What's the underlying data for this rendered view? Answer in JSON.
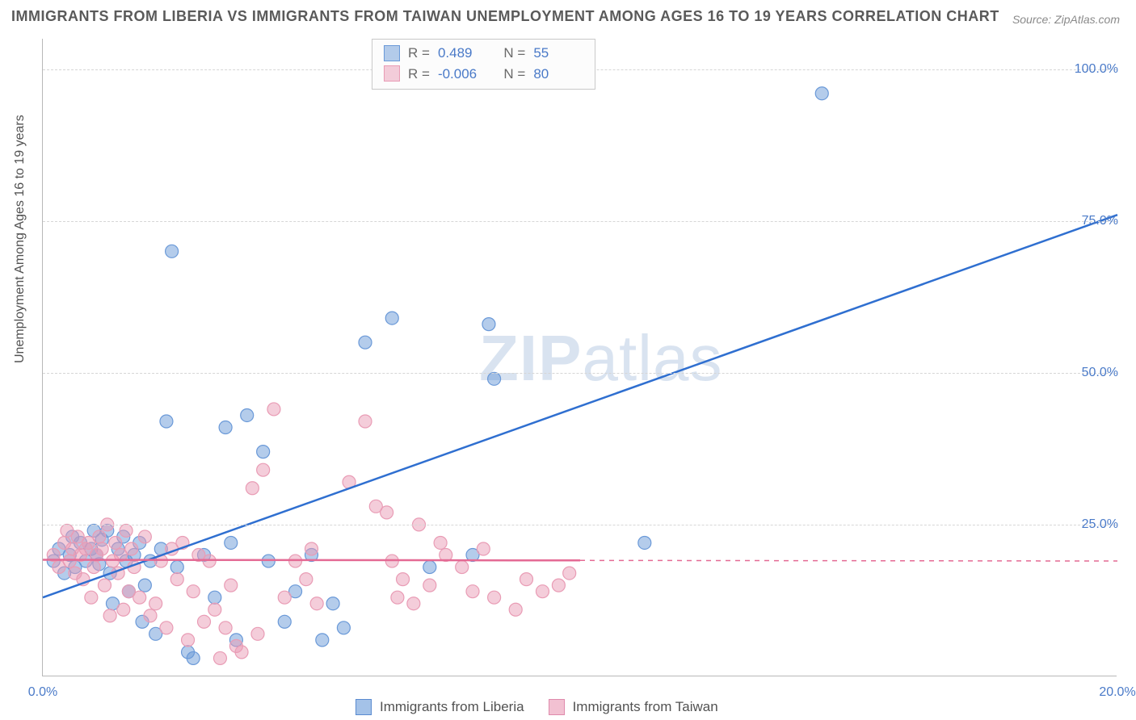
{
  "title": "IMMIGRANTS FROM LIBERIA VS IMMIGRANTS FROM TAIWAN UNEMPLOYMENT AMONG AGES 16 TO 19 YEARS CORRELATION CHART",
  "source": "Source: ZipAtlas.com",
  "watermark_bold": "ZIP",
  "watermark_rest": "atlas",
  "y_axis_title": "Unemployment Among Ages 16 to 19 years",
  "chart": {
    "type": "scatter",
    "background_color": "#ffffff",
    "grid_color": "#d6d6d6",
    "axis_color": "#b8b8b8",
    "tick_label_color": "#4a7ac8",
    "tick_fontsize": 16,
    "title_fontsize": 18,
    "title_color": "#5a5a5a",
    "xlim": [
      0,
      20
    ],
    "ylim": [
      0,
      105
    ],
    "x_ticks": [
      {
        "v": 0,
        "label": "0.0%"
      },
      {
        "v": 20,
        "label": "20.0%"
      }
    ],
    "y_ticks": [
      {
        "v": 25,
        "label": "25.0%"
      },
      {
        "v": 50,
        "label": "50.0%"
      },
      {
        "v": 75,
        "label": "75.0%"
      },
      {
        "v": 100,
        "label": "100.0%"
      }
    ],
    "marker_radius": 8,
    "marker_opacity": 0.55,
    "line_width": 2.5,
    "series": [
      {
        "name": "Immigrants from Liberia",
        "color": "#6a99d8",
        "line_color": "#2f6fd0",
        "fill": "rgba(106,153,216,0.5)",
        "R": "0.489",
        "N": "55",
        "trend": {
          "x1": 0,
          "y1": 13,
          "x2": 20,
          "y2": 76,
          "solid_until_x": 20
        },
        "points": [
          [
            0.2,
            19
          ],
          [
            0.3,
            21
          ],
          [
            0.4,
            17
          ],
          [
            0.5,
            20
          ],
          [
            0.55,
            23
          ],
          [
            0.6,
            18
          ],
          [
            0.7,
            22
          ],
          [
            0.8,
            19
          ],
          [
            0.9,
            21
          ],
          [
            0.95,
            24
          ],
          [
            1.0,
            20
          ],
          [
            1.05,
            18.5
          ],
          [
            1.1,
            22.5
          ],
          [
            1.2,
            24
          ],
          [
            1.25,
            17
          ],
          [
            1.3,
            12
          ],
          [
            1.4,
            21
          ],
          [
            1.5,
            23
          ],
          [
            1.55,
            19
          ],
          [
            1.6,
            14
          ],
          [
            1.7,
            20
          ],
          [
            1.8,
            22
          ],
          [
            1.85,
            9
          ],
          [
            1.9,
            15
          ],
          [
            2.0,
            19
          ],
          [
            2.1,
            7
          ],
          [
            2.2,
            21
          ],
          [
            2.3,
            42
          ],
          [
            2.4,
            70
          ],
          [
            2.5,
            18
          ],
          [
            2.7,
            4
          ],
          [
            2.8,
            3
          ],
          [
            3.0,
            20
          ],
          [
            3.2,
            13
          ],
          [
            3.4,
            41
          ],
          [
            3.5,
            22
          ],
          [
            3.6,
            6
          ],
          [
            3.8,
            43
          ],
          [
            4.1,
            37
          ],
          [
            4.2,
            19
          ],
          [
            4.5,
            9
          ],
          [
            4.7,
            14
          ],
          [
            5.0,
            20
          ],
          [
            5.2,
            6
          ],
          [
            5.4,
            12
          ],
          [
            5.6,
            8
          ],
          [
            6.0,
            55
          ],
          [
            6.5,
            59
          ],
          [
            7.2,
            18
          ],
          [
            8.0,
            20
          ],
          [
            8.3,
            58
          ],
          [
            8.4,
            49
          ],
          [
            11.2,
            22
          ],
          [
            14.5,
            96
          ]
        ]
      },
      {
        "name": "Immigrants from Taiwan",
        "color": "#e99cb5",
        "line_color": "#e46a94",
        "fill": "rgba(233,156,181,0.5)",
        "R": "-0.006",
        "N": "80",
        "trend": {
          "x1": 0,
          "y1": 19.2,
          "x2": 20,
          "y2": 19.0,
          "solid_until_x": 10
        },
        "points": [
          [
            0.2,
            20
          ],
          [
            0.3,
            18
          ],
          [
            0.4,
            22
          ],
          [
            0.45,
            24
          ],
          [
            0.5,
            19
          ],
          [
            0.55,
            21
          ],
          [
            0.6,
            17
          ],
          [
            0.65,
            23
          ],
          [
            0.7,
            20
          ],
          [
            0.75,
            16
          ],
          [
            0.8,
            21
          ],
          [
            0.85,
            22
          ],
          [
            0.9,
            13
          ],
          [
            0.95,
            18
          ],
          [
            1.0,
            20
          ],
          [
            1.05,
            23
          ],
          [
            1.1,
            21
          ],
          [
            1.15,
            15
          ],
          [
            1.2,
            25
          ],
          [
            1.25,
            10
          ],
          [
            1.3,
            19
          ],
          [
            1.35,
            22
          ],
          [
            1.4,
            17
          ],
          [
            1.45,
            20
          ],
          [
            1.5,
            11
          ],
          [
            1.55,
            24
          ],
          [
            1.6,
            14
          ],
          [
            1.65,
            21
          ],
          [
            1.7,
            18
          ],
          [
            1.8,
            13
          ],
          [
            1.9,
            23
          ],
          [
            2.0,
            10
          ],
          [
            2.1,
            12
          ],
          [
            2.2,
            19
          ],
          [
            2.3,
            8
          ],
          [
            2.4,
            21
          ],
          [
            2.5,
            16
          ],
          [
            2.6,
            22
          ],
          [
            2.7,
            6
          ],
          [
            2.8,
            14
          ],
          [
            2.9,
            20
          ],
          [
            3.0,
            9
          ],
          [
            3.1,
            19
          ],
          [
            3.2,
            11
          ],
          [
            3.3,
            3
          ],
          [
            3.4,
            8
          ],
          [
            3.5,
            15
          ],
          [
            3.6,
            5
          ],
          [
            3.7,
            4
          ],
          [
            3.9,
            31
          ],
          [
            4.0,
            7
          ],
          [
            4.1,
            34
          ],
          [
            4.3,
            44
          ],
          [
            4.5,
            13
          ],
          [
            4.7,
            19
          ],
          [
            4.9,
            16
          ],
          [
            5.0,
            21
          ],
          [
            5.1,
            12
          ],
          [
            5.7,
            32
          ],
          [
            6.0,
            42
          ],
          [
            6.2,
            28
          ],
          [
            6.4,
            27
          ],
          [
            6.5,
            19
          ],
          [
            6.6,
            13
          ],
          [
            6.7,
            16
          ],
          [
            6.9,
            12
          ],
          [
            7.0,
            25
          ],
          [
            7.2,
            15
          ],
          [
            7.4,
            22
          ],
          [
            7.5,
            20
          ],
          [
            7.8,
            18
          ],
          [
            8.0,
            14
          ],
          [
            8.2,
            21
          ],
          [
            8.4,
            13
          ],
          [
            8.8,
            11
          ],
          [
            9.0,
            16
          ],
          [
            9.3,
            14
          ],
          [
            9.6,
            15
          ],
          [
            9.8,
            17
          ]
        ]
      }
    ]
  },
  "legend_bottom": [
    {
      "label": "Immigrants from Liberia",
      "color": "#a4c2e8",
      "border": "#5a8bd0"
    },
    {
      "label": "Immigrants from Taiwan",
      "color": "#f2c1d2",
      "border": "#df8aac"
    }
  ]
}
